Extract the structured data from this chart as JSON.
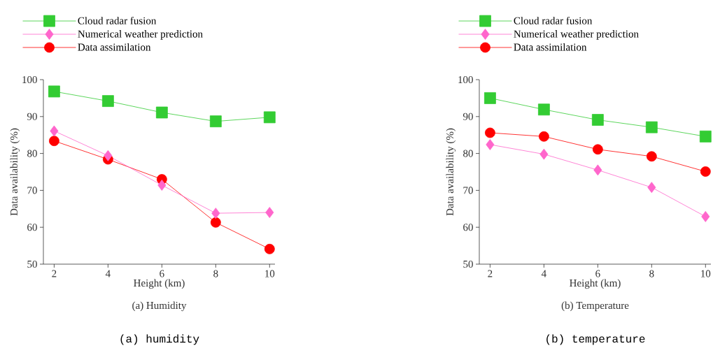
{
  "chart_data": [
    {
      "type": "line",
      "xlabel": "Height (km)",
      "ylabel": "Data availability (%)",
      "x": [
        2,
        4,
        6,
        8,
        10
      ],
      "xlim": [
        1.6,
        10.2
      ],
      "xticks": [
        2,
        4,
        6,
        8,
        10
      ],
      "ylim": [
        50,
        100
      ],
      "yticks": [
        50,
        60,
        70,
        80,
        90,
        100
      ],
      "legend": "top left",
      "series": [
        {
          "name": "Cloud radar fusion",
          "color": "#33cc33",
          "marker": "square",
          "values": [
            96.8,
            94.2,
            91.1,
            88.7,
            89.8
          ]
        },
        {
          "name": "Numerical weather prediction",
          "color": "#ff66cc",
          "marker": "diamond",
          "values": [
            86.1,
            79.4,
            71.4,
            63.8,
            64.0
          ]
        },
        {
          "name": "Data assimilation",
          "color": "#ff0000",
          "marker": "circle",
          "values": [
            83.4,
            78.4,
            73.0,
            61.3,
            54.1
          ]
        }
      ],
      "annotations": [
        "(a) Humidity",
        "(a) humidity"
      ]
    },
    {
      "type": "line",
      "xlabel": "Height (km)",
      "ylabel": "Data availability (%)",
      "x": [
        2,
        4,
        6,
        8,
        10
      ],
      "xlim": [
        1.6,
        10.2
      ],
      "xticks": [
        2,
        4,
        6,
        8,
        10
      ],
      "ylim": [
        50,
        100
      ],
      "yticks": [
        50,
        60,
        70,
        80,
        90,
        100
      ],
      "legend": "top left",
      "series": [
        {
          "name": "Cloud radar fusion",
          "color": "#33cc33",
          "marker": "square",
          "values": [
            95.0,
            91.9,
            89.1,
            87.1,
            84.6
          ]
        },
        {
          "name": "Numerical weather prediction",
          "color": "#ff66cc",
          "marker": "diamond",
          "values": [
            82.4,
            79.8,
            75.5,
            70.8,
            62.9
          ]
        },
        {
          "name": "Data assimilation",
          "color": "#ff0000",
          "marker": "circle",
          "values": [
            85.6,
            84.6,
            81.1,
            79.2,
            75.1
          ]
        }
      ],
      "annotations": [
        "(b) Temperature",
        "(b) temperature"
      ]
    }
  ]
}
